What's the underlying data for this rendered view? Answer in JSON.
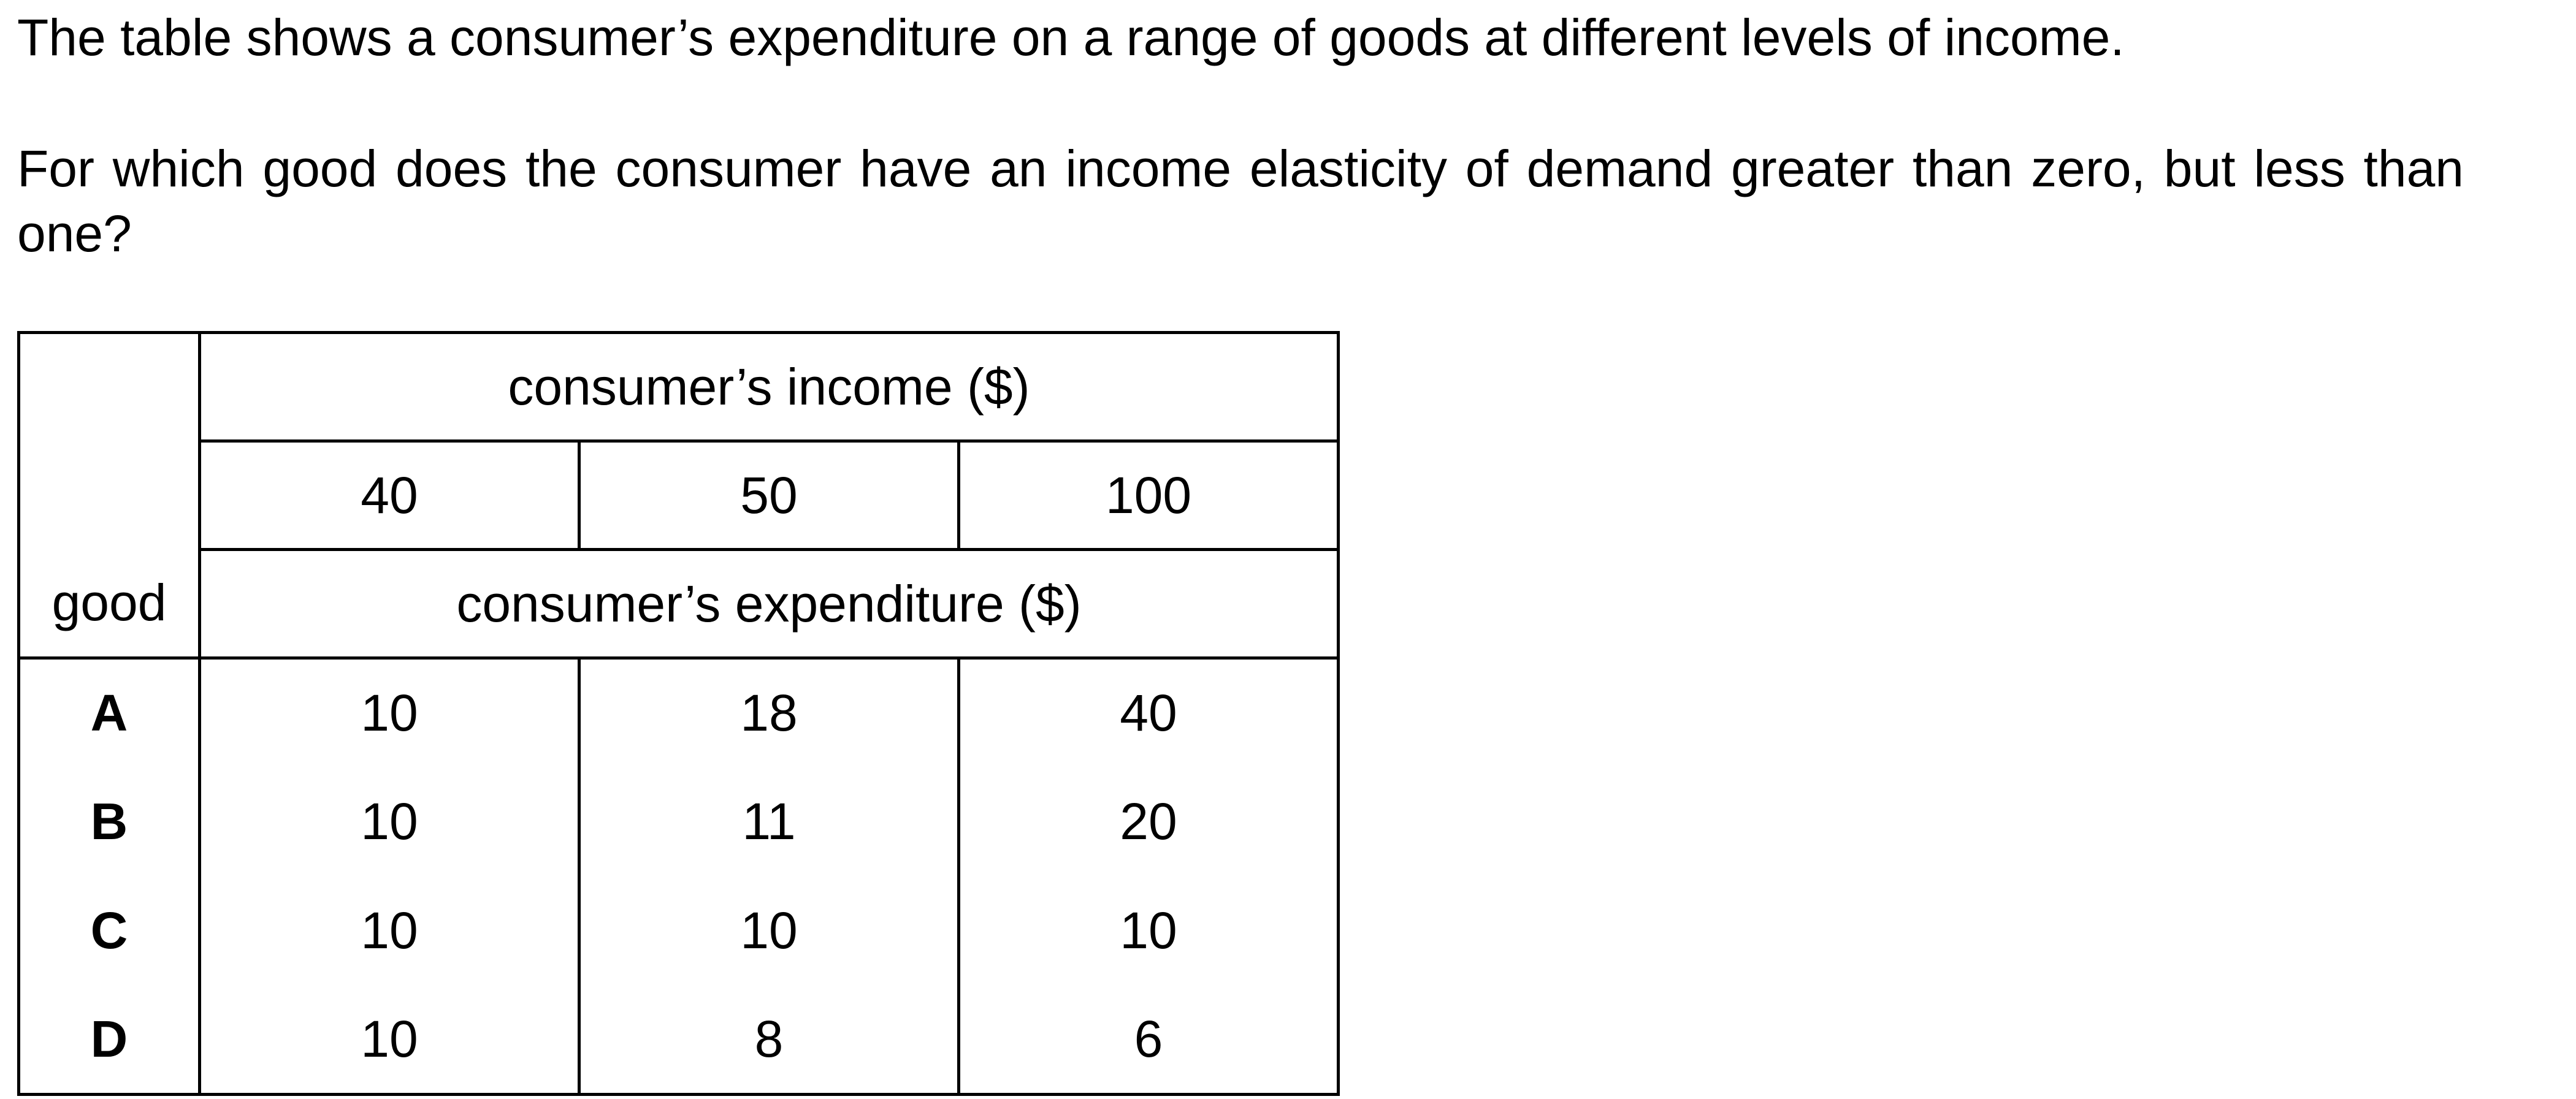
{
  "question": {
    "intro": "The table shows a consumer’s expenditure on a range of goods at different levels of income.",
    "prompt": "For which good does the consumer have an income elasticity of demand greater than zero, but less than one?"
  },
  "table": {
    "income_header": "consumer’s income ($)",
    "income_levels": [
      "40",
      "50",
      "100"
    ],
    "good_header": "good",
    "expenditure_header": "consumer’s expenditure ($)",
    "rows": [
      {
        "good": "A",
        "values": [
          "10",
          "18",
          "40"
        ]
      },
      {
        "good": "B",
        "values": [
          "10",
          "11",
          "20"
        ]
      },
      {
        "good": "C",
        "values": [
          "10",
          "10",
          "10"
        ]
      },
      {
        "good": "D",
        "values": [
          "10",
          "8",
          "6"
        ]
      }
    ]
  },
  "chart_data": {
    "type": "table",
    "columns": [
      "good",
      "40",
      "50",
      "100"
    ],
    "column_group_header": "consumer’s income ($)",
    "value_header": "consumer’s expenditure ($)",
    "rows": [
      [
        "A",
        10,
        18,
        40
      ],
      [
        "B",
        10,
        11,
        20
      ],
      [
        "C",
        10,
        10,
        10
      ],
      [
        "D",
        10,
        8,
        6
      ]
    ]
  }
}
